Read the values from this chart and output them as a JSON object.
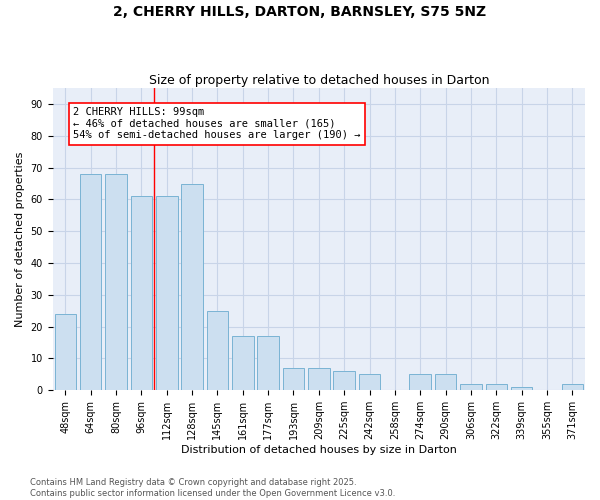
{
  "title": "2, CHERRY HILLS, DARTON, BARNSLEY, S75 5NZ",
  "subtitle": "Size of property relative to detached houses in Darton",
  "xlabel": "Distribution of detached houses by size in Darton",
  "ylabel": "Number of detached properties",
  "categories": [
    "48sqm",
    "64sqm",
    "80sqm",
    "96sqm",
    "112sqm",
    "128sqm",
    "145sqm",
    "161sqm",
    "177sqm",
    "193sqm",
    "209sqm",
    "225sqm",
    "242sqm",
    "258sqm",
    "274sqm",
    "290sqm",
    "306sqm",
    "322sqm",
    "339sqm",
    "355sqm",
    "371sqm"
  ],
  "values": [
    24,
    68,
    68,
    61,
    61,
    65,
    25,
    17,
    17,
    7,
    7,
    6,
    5,
    0,
    5,
    5,
    2,
    2,
    1,
    0,
    2
  ],
  "bar_color": "#ccdff0",
  "bar_edge_color": "#7ab3d4",
  "red_line_x": 3.5,
  "annotation_text": "2 CHERRY HILLS: 99sqm\n← 46% of detached houses are smaller (165)\n54% of semi-detached houses are larger (190) →",
  "annotation_box_color": "white",
  "annotation_box_edge_color": "red",
  "ylim": [
    0,
    95
  ],
  "yticks": [
    0,
    10,
    20,
    30,
    40,
    50,
    60,
    70,
    80,
    90
  ],
  "grid_color": "#c8d4e8",
  "background_color": "#e8eef8",
  "footer_text": "Contains HM Land Registry data © Crown copyright and database right 2025.\nContains public sector information licensed under the Open Government Licence v3.0.",
  "title_fontsize": 10,
  "subtitle_fontsize": 9,
  "xlabel_fontsize": 8,
  "ylabel_fontsize": 8,
  "tick_fontsize": 7,
  "annotation_fontsize": 7.5,
  "footer_fontsize": 6
}
